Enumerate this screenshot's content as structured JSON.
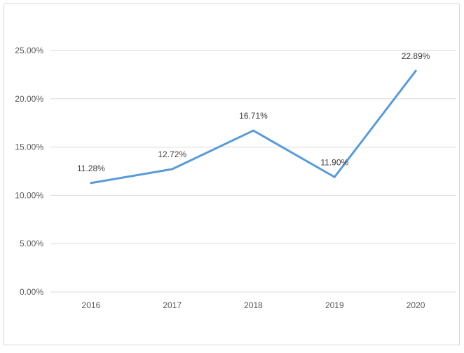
{
  "chart_data": {
    "type": "line",
    "categories": [
      "2016",
      "2017",
      "2018",
      "2019",
      "2020"
    ],
    "series": [
      {
        "values": [
          11.28,
          12.72,
          16.71,
          11.9,
          22.89
        ]
      }
    ],
    "data_labels": [
      "11.28%",
      "12.72%",
      "16.71%",
      "11.90%",
      "22.89%"
    ],
    "y_ticks": [
      "0.00%",
      "5.00%",
      "10.00%",
      "15.00%",
      "20.00%",
      "25.00%"
    ],
    "ylim": [
      0,
      25
    ],
    "y_unit": "%",
    "grid": true,
    "legend": "none",
    "colors": {
      "line": "#5b9bd5",
      "grid": "#d9d9d9",
      "axis_text": "#595959",
      "label_text": "#404040"
    }
  }
}
